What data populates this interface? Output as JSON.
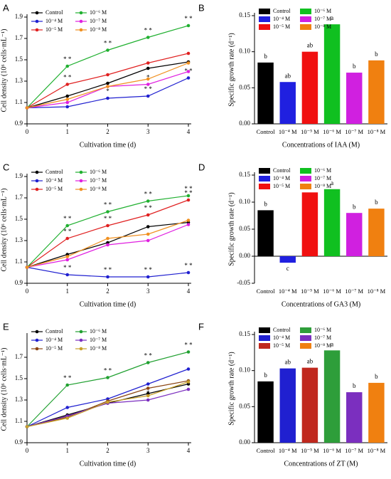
{
  "chart_data": [
    {
      "type": "line",
      "label": "A",
      "xlabel": "Cultivation time (d)",
      "ylabel": "Cell density (10⁶ cells·mL⁻¹)",
      "x": [
        0,
        1,
        2,
        3,
        4
      ],
      "xlim": [
        0,
        4
      ],
      "xticks": [
        0,
        1,
        2,
        3,
        4
      ],
      "ylim": [
        0.9,
        1.9
      ],
      "yticks": [
        0.9,
        1.1,
        1.3,
        1.5,
        1.7,
        1.9
      ],
      "series": [
        {
          "name": "Control",
          "color": "#000000",
          "values": [
            1.05,
            1.16,
            1.28,
            1.42,
            1.48
          ],
          "labels": [
            null,
            null,
            null,
            null,
            null
          ]
        },
        {
          "name": "10⁻⁴ M",
          "color": "#2020d0",
          "values": [
            1.05,
            1.06,
            1.14,
            1.16,
            1.33
          ],
          "labels": [
            null,
            null,
            "*",
            "* *",
            "* *"
          ]
        },
        {
          "name": "10⁻⁵ M",
          "color": "#e02020",
          "values": [
            1.05,
            1.27,
            1.36,
            1.47,
            1.56
          ],
          "labels": [
            null,
            "* *",
            null,
            null,
            null
          ]
        },
        {
          "name": "10⁻⁶ M",
          "color": "#20b030",
          "values": [
            1.05,
            1.44,
            1.59,
            1.71,
            1.82
          ],
          "labels": [
            null,
            "* *",
            "* *",
            "* *",
            "* *"
          ]
        },
        {
          "name": "10⁻⁷ M",
          "color": "#e020e0",
          "values": [
            1.05,
            1.1,
            1.25,
            1.27,
            1.39
          ],
          "labels": [
            null,
            null,
            null,
            "*",
            null
          ]
        },
        {
          "name": "10⁻⁸ M",
          "color": "#f09020",
          "values": [
            1.05,
            1.13,
            1.25,
            1.32,
            1.47
          ],
          "labels": [
            null,
            null,
            null,
            null,
            null
          ]
        }
      ]
    },
    {
      "type": "bar",
      "label": "B",
      "xlabel": "Concentrations of IAA (M)",
      "ylabel": "Specific growth rate (d⁻¹)",
      "categories": [
        "Control",
        "10⁻⁴ M",
        "10⁻⁵ M",
        "10⁻⁶ M",
        "10⁻⁷ M",
        "10⁻⁸ M"
      ],
      "values": [
        0.085,
        0.058,
        0.1,
        0.138,
        0.071,
        0.088
      ],
      "letters": [
        "b",
        "ab",
        "ab",
        "a",
        "b",
        "b"
      ],
      "colors": [
        "#000000",
        "#2020e0",
        "#f01010",
        "#10c020",
        "#d020e0",
        "#f08010"
      ],
      "ylim": [
        0,
        0.15
      ],
      "yticks": [
        {
          "value": 0,
          "label": "0.00"
        },
        {
          "value": 0.05,
          "label": "0.05"
        },
        {
          "value": 0.1,
          "label": "0.10"
        },
        {
          "value": 0.15,
          "label": "0.15"
        }
      ]
    },
    {
      "type": "line",
      "label": "C",
      "xlabel": "Cultivation time (d)",
      "ylabel": "Cell density (10⁶ cells·mL⁻¹)",
      "x": [
        0,
        1,
        2,
        3,
        4
      ],
      "xlim": [
        0,
        4
      ],
      "xticks": [
        0,
        1,
        2,
        3,
        4
      ],
      "ylim": [
        0.9,
        1.9
      ],
      "yticks": [
        0.9,
        1.1,
        1.3,
        1.5,
        1.7,
        1.9
      ],
      "series": [
        {
          "name": "Control",
          "color": "#000000",
          "values": [
            1.05,
            1.17,
            1.28,
            1.43,
            1.47
          ],
          "labels": [
            null,
            null,
            null,
            null,
            null
          ]
        },
        {
          "name": "10⁻⁴ M",
          "color": "#2020d0",
          "values": [
            1.05,
            0.98,
            0.96,
            0.96,
            1.0
          ],
          "labels": [
            null,
            "* *",
            "* *",
            "* *",
            "* *"
          ]
        },
        {
          "name": "10⁻⁵ M",
          "color": "#e02020",
          "values": [
            1.05,
            1.32,
            1.44,
            1.54,
            1.68
          ],
          "labels": [
            null,
            "* *",
            "* *",
            "* *",
            "* *"
          ]
        },
        {
          "name": "10⁻⁶ M",
          "color": "#20b030",
          "values": [
            1.05,
            1.44,
            1.57,
            1.67,
            1.72
          ],
          "labels": [
            null,
            "* *",
            "* *",
            "* *",
            "* *"
          ]
        },
        {
          "name": "10⁻⁷ M",
          "color": "#e020e0",
          "values": [
            1.05,
            1.12,
            1.26,
            1.3,
            1.45
          ],
          "labels": [
            null,
            null,
            null,
            null,
            null
          ]
        },
        {
          "name": "10⁻⁸ M",
          "color": "#f09020",
          "values": [
            1.05,
            1.15,
            1.32,
            1.36,
            1.49
          ],
          "labels": [
            null,
            null,
            null,
            null,
            null
          ]
        }
      ]
    },
    {
      "type": "bar",
      "label": "D",
      "xlabel": "Concentrations of GA3 (M)",
      "ylabel": "Specific growth rate (d⁻¹)",
      "categories": [
        "Control",
        "10⁻⁴ M",
        "10⁻⁵ M",
        "10⁻⁶ M",
        "10⁻⁷ M",
        "10⁻⁸ M"
      ],
      "values": [
        0.085,
        -0.012,
        0.118,
        0.124,
        0.08,
        0.088
      ],
      "letters": [
        "b",
        "c",
        "a",
        "a",
        "b",
        "b"
      ],
      "colors": [
        "#000000",
        "#2020e0",
        "#f01010",
        "#10c020",
        "#d020e0",
        "#f08010"
      ],
      "ylim": [
        -0.05,
        0.15
      ],
      "yticks": [
        {
          "value": -0.05,
          "label": "-0.05"
        },
        {
          "value": 0,
          "label": "0.00"
        },
        {
          "value": 0.05,
          "label": "0.05"
        },
        {
          "value": 0.1,
          "label": "0.10"
        },
        {
          "value": 0.15,
          "label": "0.15"
        }
      ]
    },
    {
      "type": "line",
      "label": "E",
      "xlabel": "Cultivation time (d)",
      "ylabel": "Cell density (10⁶ cells·mL⁻¹)",
      "x": [
        0,
        1,
        2,
        3,
        4
      ],
      "xlim": [
        0,
        4
      ],
      "xticks": [
        0,
        1,
        2,
        3,
        4
      ],
      "ylim": [
        0.9,
        1.9
      ],
      "yticks": [
        0.9,
        1.1,
        1.3,
        1.5,
        1.7
      ],
      "series": [
        {
          "name": "Control",
          "color": "#000000",
          "values": [
            1.05,
            1.16,
            1.27,
            1.36,
            1.45
          ],
          "labels": [
            null,
            null,
            null,
            null,
            null
          ]
        },
        {
          "name": "10⁻⁴ M",
          "color": "#2020d0",
          "values": [
            1.05,
            1.23,
            1.31,
            1.45,
            1.59
          ],
          "labels": [
            null,
            null,
            null,
            null,
            null
          ]
        },
        {
          "name": "10⁻⁵ M",
          "color": "#8b4513",
          "values": [
            1.05,
            1.14,
            1.29,
            1.41,
            1.48
          ],
          "labels": [
            null,
            null,
            null,
            null,
            null
          ]
        },
        {
          "name": "10⁻⁶ M",
          "color": "#20a030",
          "values": [
            1.05,
            1.44,
            1.51,
            1.65,
            1.75
          ],
          "labels": [
            null,
            "* *",
            "* *",
            "* *",
            "* *"
          ]
        },
        {
          "name": "10⁻⁷ M",
          "color": "#7b2fbf",
          "values": [
            1.05,
            1.15,
            1.27,
            1.3,
            1.4
          ],
          "labels": [
            null,
            null,
            null,
            "*",
            null
          ]
        },
        {
          "name": "10⁻⁸ M",
          "color": "#c8a02a",
          "values": [
            1.05,
            1.13,
            1.28,
            1.34,
            1.47
          ],
          "labels": [
            null,
            null,
            null,
            null,
            null
          ]
        }
      ]
    },
    {
      "type": "bar",
      "label": "F",
      "xlabel": "Concentrations of ZT (M)",
      "ylabel": "Specific growth rate (d⁻¹)",
      "categories": [
        "Control",
        "10⁻⁴ M",
        "10⁻⁵ M",
        "10⁻⁶ M",
        "10⁻⁷ M",
        "10⁻⁸ M"
      ],
      "values": [
        0.085,
        0.103,
        0.104,
        0.128,
        0.07,
        0.083
      ],
      "letters": [
        "b",
        "ab",
        "ab",
        "a",
        "b",
        "b"
      ],
      "colors": [
        "#000000",
        "#2020d0",
        "#c0281e",
        "#2e9e3a",
        "#7b2fbf",
        "#f08010"
      ],
      "ylim": [
        0,
        0.15
      ],
      "yticks": [
        {
          "value": 0,
          "label": "0.00"
        },
        {
          "value": 0.05,
          "label": "0.05"
        },
        {
          "value": 0.1,
          "label": "0.10"
        },
        {
          "value": 0.15,
          "label": "0.15"
        }
      ]
    }
  ]
}
